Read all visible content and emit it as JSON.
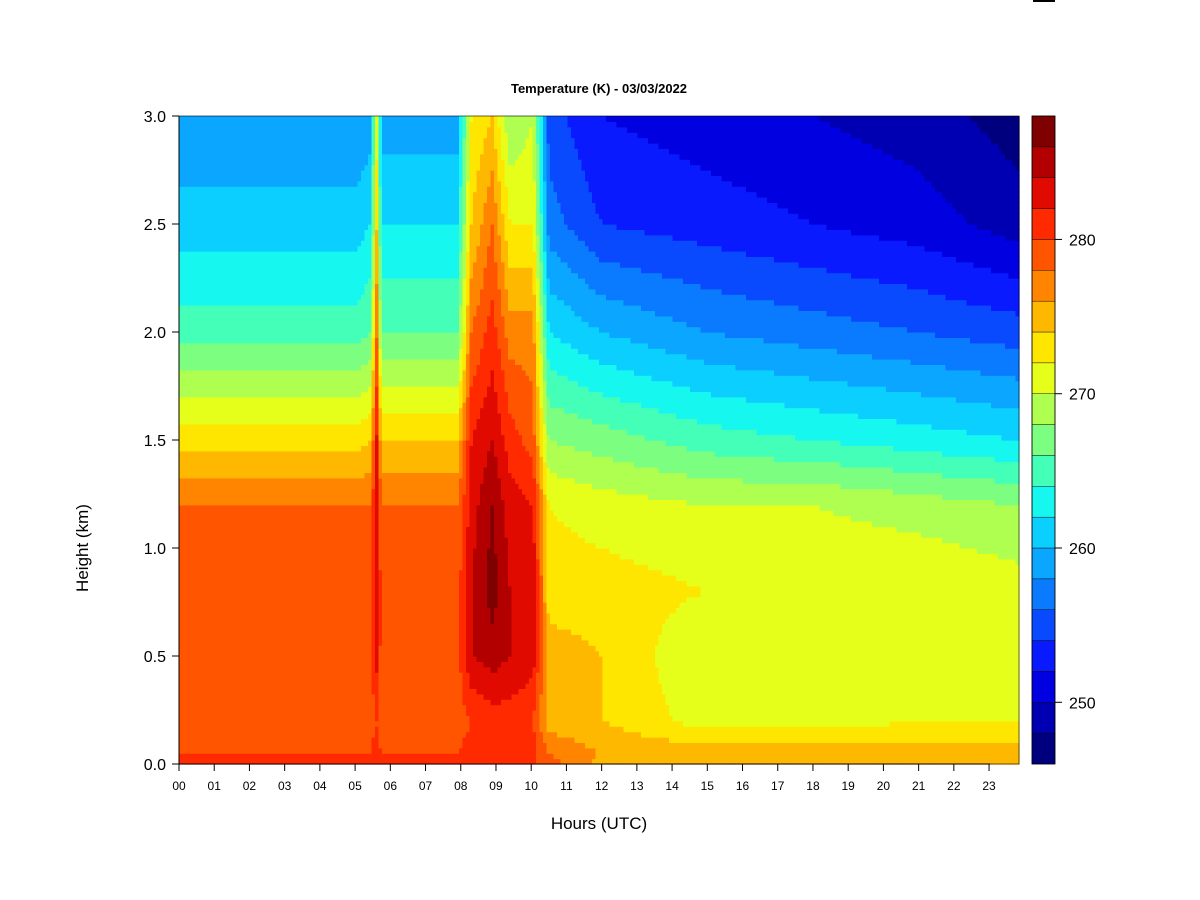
{
  "chart_data": {
    "type": "heatmap",
    "title": "Temperature (K) - 03/03/2022",
    "xlabel": "Hours (UTC)",
    "ylabel": "Height (km)",
    "xlim": [
      0,
      23.85
    ],
    "ylim": [
      0,
      3.0
    ],
    "x_ticks": [
      0,
      1,
      2,
      3,
      4,
      5,
      6,
      7,
      8,
      9,
      10,
      11,
      12,
      13,
      14,
      15,
      16,
      17,
      18,
      19,
      20,
      21,
      22,
      23
    ],
    "x_tick_labels": [
      "00",
      "01",
      "02",
      "03",
      "04",
      "05",
      "06",
      "07",
      "08",
      "09",
      "10",
      "11",
      "12",
      "13",
      "14",
      "15",
      "16",
      "17",
      "18",
      "19",
      "20",
      "21",
      "22",
      "23"
    ],
    "y_ticks": [
      0.0,
      0.5,
      1.0,
      1.5,
      2.0,
      2.5,
      3.0
    ],
    "y_tick_labels": [
      "0.0",
      "0.5",
      "1.0",
      "1.5",
      "2.0",
      "2.5",
      "3.0"
    ],
    "colorbar": {
      "min": 246,
      "max": 288,
      "step": 2,
      "ticks": [
        250,
        260,
        270,
        280
      ],
      "tick_labels": [
        "250",
        "260",
        "270",
        "280"
      ],
      "colors": [
        "#00007F",
        "#0000B2",
        "#0000E0",
        "#0A1AFF",
        "#0A4AFF",
        "#0A7AFF",
        "#0AA6FF",
        "#0ACFFF",
        "#16F7F0",
        "#44FFB8",
        "#7CFF80",
        "#AEFF50",
        "#E6FF1A",
        "#FFE600",
        "#FFB800",
        "#FF8400",
        "#FF5400",
        "#FF2A00",
        "#E00A00",
        "#B20000",
        "#7F0000"
      ]
    },
    "profile_heights_km": [
      0,
      0.05,
      0.2,
      0.5,
      0.8,
      1.2,
      1.5,
      2.0,
      2.5,
      3.0
    ],
    "profiles": [
      {
        "hour": 0.0,
        "temps_K": [
          281,
          280,
          279,
          279,
          279,
          278,
          273,
          265,
          261,
          258
        ]
      },
      {
        "hour": 3.0,
        "temps_K": [
          282,
          280,
          279,
          279,
          279,
          278,
          273,
          265,
          261,
          258
        ]
      },
      {
        "hour": 5.0,
        "temps_K": [
          282,
          280,
          279,
          279,
          279,
          278,
          273,
          265,
          261,
          258
        ]
      },
      {
        "hour": 5.45,
        "temps_K": [
          281,
          280,
          279,
          279,
          279,
          278,
          274,
          266,
          262,
          259
        ]
      },
      {
        "hour": 5.6,
        "temps_K": [
          282,
          281,
          280,
          283,
          284,
          284,
          283,
          279,
          275,
          272
        ]
      },
      {
        "hour": 5.75,
        "temps_K": [
          281,
          280,
          279,
          279,
          279,
          278,
          274,
          266,
          262,
          259
        ]
      },
      {
        "hour": 7.9,
        "temps_K": [
          281,
          280,
          279,
          279,
          279,
          278,
          274,
          266,
          262,
          259
        ]
      },
      {
        "hour": 8.3,
        "temps_K": [
          281,
          281,
          280,
          284,
          284,
          283,
          282,
          278,
          274,
          272
        ]
      },
      {
        "hour": 8.9,
        "temps_K": [
          281,
          282,
          281,
          285,
          287,
          286,
          284,
          281,
          278,
          274
        ]
      },
      {
        "hour": 9.4,
        "temps_K": [
          281,
          282,
          281,
          284,
          284,
          283,
          281,
          277,
          272,
          268
        ]
      },
      {
        "hour": 10.05,
        "temps_K": [
          280,
          281,
          280,
          283,
          284,
          282,
          279,
          277,
          272,
          270
        ]
      },
      {
        "hour": 10.5,
        "temps_K": [
          279,
          278,
          275,
          275,
          273,
          272,
          268,
          262,
          257,
          255
        ]
      },
      {
        "hour": 12.0,
        "temps_K": [
          275,
          276,
          274,
          274,
          273,
          271,
          267,
          260,
          254,
          252
        ]
      },
      {
        "hour": 15.0,
        "temps_K": [
          274,
          275,
          271,
          270,
          272,
          270,
          265,
          258,
          253,
          251
        ]
      },
      {
        "hour": 18.0,
        "temps_K": [
          274,
          275,
          271,
          270,
          272,
          270,
          264,
          257,
          252,
          250
        ]
      },
      {
        "hour": 21.0,
        "temps_K": [
          274,
          275,
          272,
          271,
          272,
          269,
          263,
          256,
          251,
          249
        ]
      },
      {
        "hour": 23.85,
        "temps_K": [
          276,
          275,
          272,
          271,
          271,
          268,
          262,
          255,
          249,
          247
        ]
      }
    ]
  }
}
